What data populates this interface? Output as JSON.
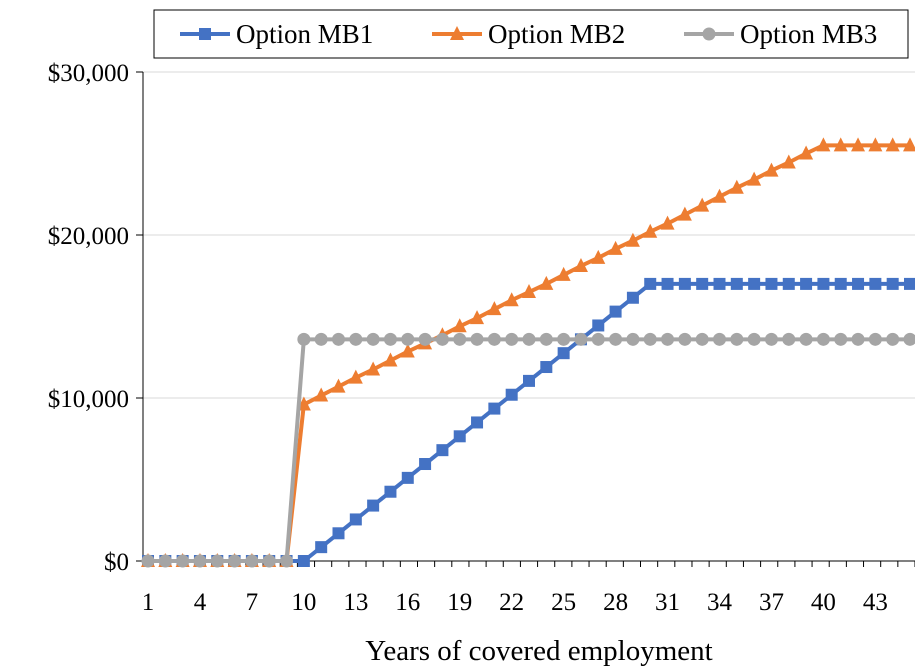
{
  "chart_data": {
    "type": "line",
    "xlabel": "Years of covered employment",
    "ylabel": "",
    "xlim": [
      1,
      45
    ],
    "ylim": [
      0,
      30000
    ],
    "x": [
      1,
      2,
      3,
      4,
      5,
      6,
      7,
      8,
      9,
      10,
      11,
      12,
      13,
      14,
      15,
      16,
      17,
      18,
      19,
      20,
      21,
      22,
      23,
      24,
      25,
      26,
      27,
      28,
      29,
      30,
      31,
      32,
      33,
      34,
      35,
      36,
      37,
      38,
      39,
      40,
      41,
      42,
      43,
      44,
      45
    ],
    "x_tick_labels": [
      "1",
      "4",
      "7",
      "10",
      "13",
      "16",
      "19",
      "22",
      "25",
      "28",
      "31",
      "34",
      "37",
      "40",
      "43"
    ],
    "y_tick_labels": [
      "$0",
      "$10,000",
      "$20,000",
      "$30,000"
    ],
    "y_ticks": [
      0,
      10000,
      20000,
      30000
    ],
    "grid": "horizontal",
    "legend_position": "top",
    "series": [
      {
        "name": "Option MB1",
        "color": "#4472C4",
        "marker": "square",
        "values": [
          0,
          0,
          0,
          0,
          0,
          0,
          0,
          0,
          0,
          0,
          850,
          1700,
          2550,
          3400,
          4250,
          5100,
          5950,
          6800,
          7650,
          8500,
          9350,
          10200,
          11050,
          11900,
          12750,
          13600,
          14450,
          15300,
          16150,
          17000,
          17000,
          17000,
          17000,
          17000,
          17000,
          17000,
          17000,
          17000,
          17000,
          17000,
          17000,
          17000,
          17000,
          17000,
          17000
        ]
      },
      {
        "name": "Option MB2",
        "color": "#ED7D31",
        "marker": "triangle",
        "values": [
          0,
          0,
          0,
          0,
          0,
          0,
          0,
          0,
          0,
          9600,
          10150,
          10700,
          11250,
          11750,
          12300,
          12850,
          13350,
          13850,
          14400,
          14900,
          15450,
          16000,
          16500,
          17000,
          17550,
          18100,
          18600,
          19150,
          19650,
          20200,
          20700,
          21250,
          21800,
          22350,
          22900,
          23400,
          23950,
          24450,
          25000,
          25500,
          25500,
          25500,
          25500,
          25500,
          25500
        ]
      },
      {
        "name": "Option MB3",
        "color": "#A5A5A5",
        "marker": "circle",
        "values": [
          0,
          0,
          0,
          0,
          0,
          0,
          0,
          0,
          0,
          13600,
          13600,
          13600,
          13600,
          13600,
          13600,
          13600,
          13600,
          13600,
          13600,
          13600,
          13600,
          13600,
          13600,
          13600,
          13600,
          13600,
          13600,
          13600,
          13600,
          13600,
          13600,
          13600,
          13600,
          13600,
          13600,
          13600,
          13600,
          13600,
          13600,
          13600,
          13600,
          13600,
          13600,
          13600,
          13600
        ]
      }
    ]
  }
}
